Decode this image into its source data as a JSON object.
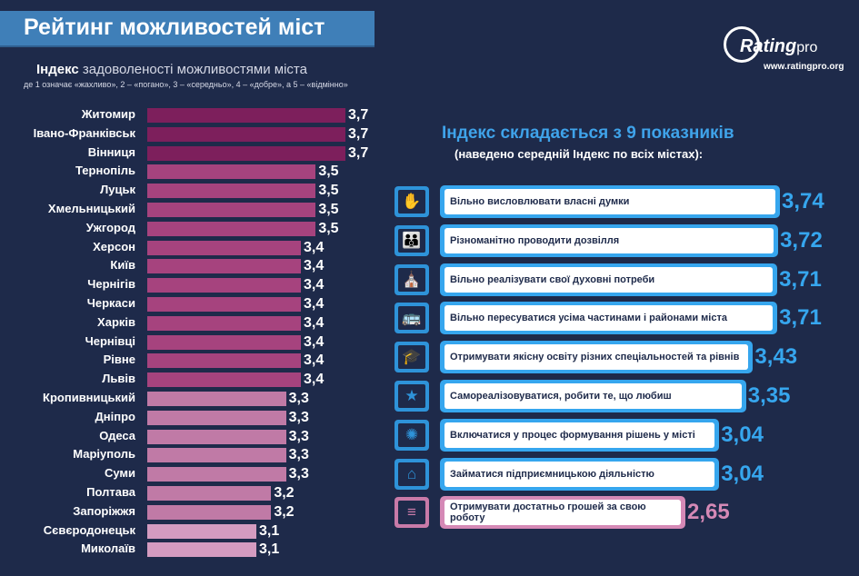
{
  "header": {
    "title": "Рейтинг можливостей міст",
    "logo_text": "Rating",
    "logo_pro": "pro",
    "logo_url": "www.ratingpro.org"
  },
  "index": {
    "title_bold": "Індекс",
    "title_rest": " задоволеності можливостями міста",
    "subtitle": "де 1 означає «жахливо», 2 – «погано», 3 – «середньо», 4 – «добре», а 5 – «відмінно»"
  },
  "panel": {
    "title": "Індекс складається з 9 показників",
    "subtitle": "(наведено середній Індекс по всіх містах):"
  },
  "colors": {
    "dark": "#7d1f5c",
    "mid": "#a6437e",
    "light": "#c07aa6",
    "lightest": "#d49bc0",
    "blue": "#36a6ee",
    "pink": "#d589b6",
    "background": "#1e2a4a"
  },
  "chart_data": [
    {
      "type": "bar",
      "orientation": "horizontal",
      "categories": [
        "Житомир",
        "Івано-Франківськ",
        "Вінниця",
        "Тернопіль",
        "Луцьк",
        "Хмельницький",
        "Ужгород",
        "Херсон",
        "Київ",
        "Чернігів",
        "Черкаси",
        "Харків",
        "Чернівці",
        "Рівне",
        "Львів",
        "Кропивницький",
        "Дніпро",
        "Одеса",
        "Маріуполь",
        "Суми",
        "Полтава",
        "Запоріжжя",
        "Сєвєродонецьк",
        "Миколаїв"
      ],
      "values": [
        3.7,
        3.7,
        3.7,
        3.5,
        3.5,
        3.5,
        3.5,
        3.4,
        3.4,
        3.4,
        3.4,
        3.4,
        3.4,
        3.4,
        3.4,
        3.3,
        3.3,
        3.3,
        3.3,
        3.3,
        3.2,
        3.2,
        3.1,
        3.1
      ],
      "labels": [
        "3,7",
        "3,7",
        "3,7",
        "3,5",
        "3,5",
        "3,5",
        "3,5",
        "3,4",
        "3,4",
        "3,4",
        "3,4",
        "3,4",
        "3,4",
        "3,4",
        "3,4",
        "3,3",
        "3,3",
        "3,3",
        "3,3",
        "3,3",
        "3,2",
        "3,2",
        "3,1",
        "3,1"
      ],
      "tiers": [
        "dark",
        "dark",
        "dark",
        "mid",
        "mid",
        "mid",
        "mid",
        "mid",
        "mid",
        "mid",
        "mid",
        "mid",
        "mid",
        "mid",
        "mid",
        "light",
        "light",
        "light",
        "light",
        "light",
        "light",
        "light",
        "lightest",
        "lightest"
      ]
    },
    {
      "type": "bar",
      "orientation": "horizontal",
      "categories": [
        "Вільно висловлювати власні думки",
        "Різноманітно проводити дозвілля",
        "Вільно реалізувати свої духовні потреби",
        "Вільно пересуватися усіма частинами і районами міста",
        "Отримувати якісну освіту різних спеціальностей та рівнів",
        "Самореалізовуватися, робити те, що любиш",
        "Включатися у процес формування рішень у місті",
        "Займатися підприємницькою діяльністю",
        "Отримувати достатньо грошей за свою роботу"
      ],
      "values": [
        3.74,
        3.72,
        3.71,
        3.71,
        3.43,
        3.35,
        3.04,
        3.04,
        2.65
      ],
      "labels": [
        "3,74",
        "3,72",
        "3,71",
        "3,71",
        "3,43",
        "3,35",
        "3,04",
        "3,04",
        "2,65"
      ],
      "icons": [
        "raised-hands-icon",
        "family-icon",
        "praying-hands-icon",
        "transport-icon",
        "graduation-cap-icon",
        "celebrating-people-icon",
        "community-circle-icon",
        "market-stall-icon",
        "coin-stack-icon"
      ],
      "highlight": [
        false,
        false,
        false,
        false,
        false,
        false,
        false,
        false,
        true
      ]
    }
  ]
}
